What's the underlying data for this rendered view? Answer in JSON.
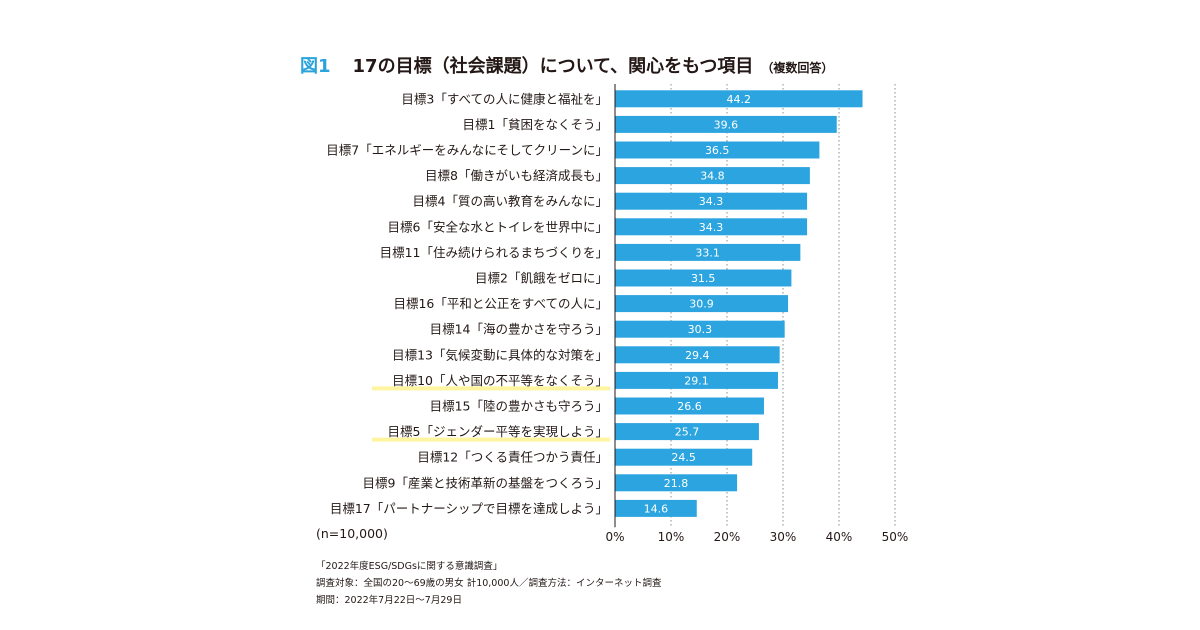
{
  "figure": {
    "number": "図1",
    "title": "17の目標（社会課題）について、関心をもつ項目",
    "subtitle": "（複数回答）"
  },
  "chart_data": {
    "type": "bar",
    "orientation": "horizontal",
    "title": "17の目標（社会課題）について、関心をもつ項目（複数回答）",
    "categories": [
      "目標3「すべての人に健康と福祉を」",
      "目標1「貧困をなくそう」",
      "目標7「エネルギーをみんなにそしてクリーンに」",
      "目標8「働きがいも経済成長も」",
      "目標4「質の高い教育をみんなに」",
      "目標6「安全な水とトイレを世界中に」",
      "目標11「住み続けられるまちづくりを」",
      "目標2「飢餓をゼロに」",
      "目標16「平和と公正をすべての人に」",
      "目標14「海の豊かさを守ろう」",
      "目標13「気候変動に具体的な対策を」",
      "目標10「人や国の不平等をなくそう」",
      "目標15「陸の豊かさも守ろう」",
      "目標5「ジェンダー平等を実現しよう」",
      "目標12「つくる責任つかう責任」",
      "目標9「産業と技術革新の基盤をつくろう」",
      "目標17「パートナーシップで目標を達成しよう」"
    ],
    "values": [
      44.2,
      39.6,
      36.5,
      34.8,
      34.3,
      34.3,
      33.1,
      31.5,
      30.9,
      30.3,
      29.4,
      29.1,
      26.6,
      25.7,
      24.5,
      21.8,
      14.6
    ],
    "value_labels": [
      "44.2",
      "39.6",
      "36.5",
      "34.8",
      "34.3",
      "34.3",
      "33.1",
      "31.5",
      "30.9",
      "30.3",
      "29.4",
      "29.1",
      "26.6",
      "25.7",
      "24.5",
      "21.8",
      "14.6"
    ],
    "highlighted_categories": [
      "目標10「人や国の不平等をなくそう」",
      "目標5「ジェンダー平等を実現しよう」"
    ],
    "xlim": [
      0,
      50
    ],
    "ticks": [
      0,
      10,
      20,
      30,
      40,
      50
    ],
    "tick_labels": [
      "0%",
      "10%",
      "20%",
      "30%",
      "40%",
      "50%"
    ],
    "grid": "dotted vertical",
    "bar_color": "#2ba4df",
    "highlight_color": "#fff5a0"
  },
  "sample_note": "(n=10,000)",
  "source": {
    "line1": "「2022年度ESG/SDGsに関する意識調査」",
    "line2": "調査対象：全国の20〜69歳の男女 計10,000人／調査方法：インターネット調査",
    "line3": "期間：2022年7月22日〜7月29日"
  }
}
